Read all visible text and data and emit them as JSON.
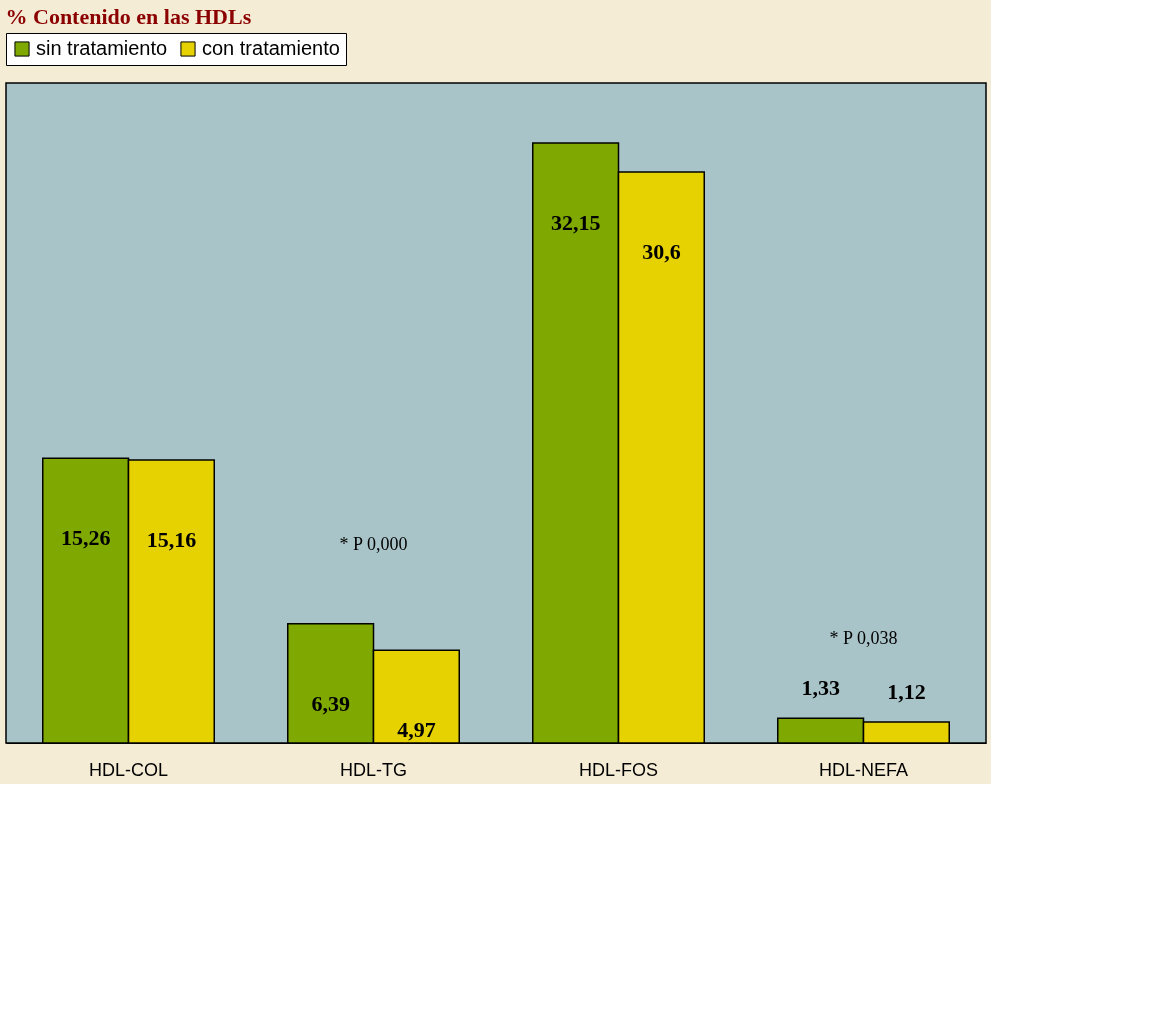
{
  "chart_data": {
    "type": "bar",
    "title": "% Contenido en las HDLs",
    "categories": [
      "HDL-COL",
      "HDL-TG",
      "HDL-FOS",
      "HDL-NEFA"
    ],
    "series": [
      {
        "name": "sin tratamiento",
        "color": "#7fa800",
        "values": [
          15.26,
          6.39,
          32.15,
          1.33
        ],
        "value_labels": [
          "15,26",
          "6,39",
          "32,15",
          "1,33"
        ]
      },
      {
        "name": "con tratamiento",
        "color": "#e6d200",
        "values": [
          15.16,
          4.97,
          30.6,
          1.12
        ],
        "value_labels": [
          "15,16",
          "4,97",
          "30,6",
          "1,12"
        ]
      }
    ],
    "annotations": [
      "* P 0,000",
      "* P 0,038"
    ],
    "legend": "top",
    "grid": false,
    "tick_labels": "x"
  }
}
